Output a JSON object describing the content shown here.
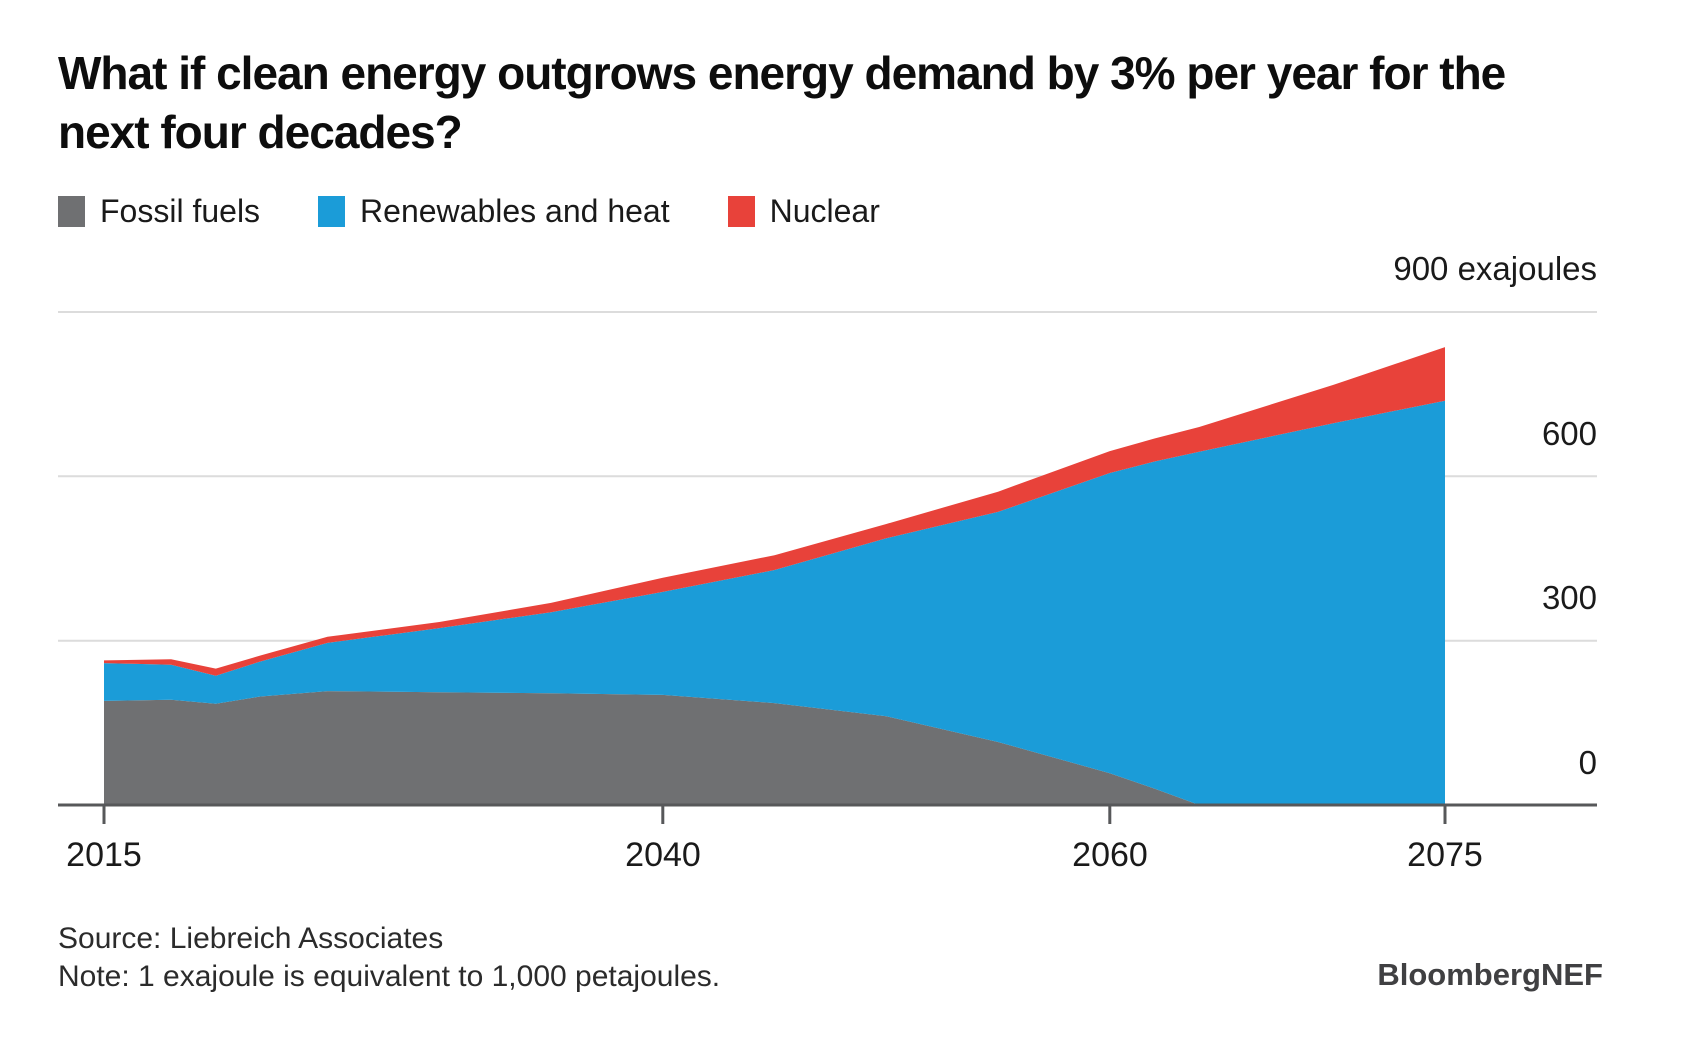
{
  "header": {
    "title": "What if clean energy outgrows energy demand by 3% per year for the next four decades?"
  },
  "legend": {
    "items": [
      {
        "label": "Fossil fuels",
        "color": "#6f7072"
      },
      {
        "label": "Renewables and heat",
        "color": "#1b9cd8"
      },
      {
        "label": "Nuclear",
        "color": "#e8423a"
      }
    ]
  },
  "y_axis": {
    "tick_labels": [
      "900 exajoules",
      "600",
      "300",
      "0"
    ],
    "tick_values": [
      900,
      600,
      300,
      0
    ],
    "unit": "exajoules"
  },
  "x_axis": {
    "tick_labels": [
      "2015",
      "2040",
      "2060",
      "2075"
    ],
    "tick_values": [
      2015,
      2040,
      2060,
      2075
    ]
  },
  "footer": {
    "source": "Source: Liebreich Associates",
    "note": "Note: 1 exajoule is equivalent to 1,000 petajoules.",
    "brand": "BloombergNEF"
  },
  "chart_data": {
    "type": "area",
    "stacked": true,
    "title": "What if clean energy outgrows energy demand by 3% per year for the next four decades?",
    "ylabel": "exajoules",
    "xlabel": "",
    "xlim": [
      2015,
      2075
    ],
    "ylim": [
      0,
      900
    ],
    "grid": "horizontal",
    "legend_position": "top-left",
    "x": [
      2015,
      2018,
      2020,
      2022,
      2025,
      2030,
      2035,
      2040,
      2045,
      2050,
      2055,
      2060,
      2062,
      2064,
      2070,
      2075
    ],
    "series": [
      {
        "name": "Fossil fuels",
        "color": "#6f7072",
        "values": [
          190,
          192,
          185,
          198,
          208,
          206,
          204,
          201,
          186,
          162,
          115,
          58,
          30,
          0,
          0,
          0
        ]
      },
      {
        "name": "Renewables and heat",
        "color": "#1b9cd8",
        "values": [
          69,
          64,
          51,
          64,
          88,
          117,
          148,
          188,
          243,
          325,
          420,
          548,
          597,
          645,
          697,
          738
        ]
      },
      {
        "name": "Nuclear",
        "color": "#e8423a",
        "values": [
          5,
          10,
          13,
          11,
          11,
          11,
          17,
          26,
          27,
          26,
          37,
          40,
          42,
          45,
          70,
          98
        ]
      }
    ],
    "x_ticks": [
      2015,
      2040,
      2060,
      2075
    ],
    "y_ticks": [
      900,
      600,
      300,
      0
    ]
  }
}
